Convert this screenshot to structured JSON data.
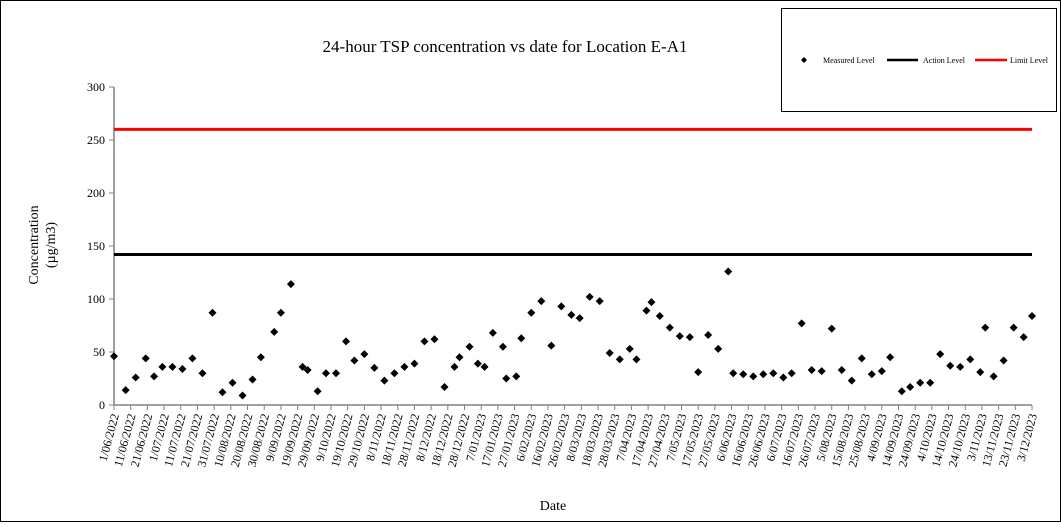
{
  "chart_data": {
    "type": "scatter",
    "title": "24-hour TSP concentration vs date for Location E-A1",
    "xlabel": "Date",
    "ylabel": [
      "Concentration",
      "(µg/m3)"
    ],
    "ylim": [
      0,
      300
    ],
    "yticks": [
      0,
      50,
      100,
      150,
      200,
      250,
      300
    ],
    "xlim": [
      "2022-06-01",
      "2023-12-03"
    ],
    "xticks": [
      "1/06/2022",
      "11/06/2022",
      "21/06/2022",
      "1/07/2022",
      "11/07/2022",
      "21/07/2022",
      "31/07/2022",
      "10/08/2022",
      "20/08/2022",
      "30/08/2022",
      "9/09/2022",
      "19/09/2022",
      "29/09/2022",
      "9/10/2022",
      "19/10/2022",
      "29/10/2022",
      "8/11/2022",
      "18/11/2022",
      "28/11/2022",
      "8/12/2022",
      "18/12/2022",
      "28/12/2022",
      "7/01/2023",
      "17/01/2023",
      "27/01/2023",
      "6/02/2023",
      "16/02/2023",
      "26/02/2023",
      "8/03/2023",
      "18/03/2023",
      "28/03/2023",
      "7/04/2023",
      "17/04/2023",
      "27/04/2023",
      "7/05/2023",
      "17/05/2023",
      "27/05/2023",
      "6/06/2023",
      "16/06/2023",
      "26/06/2023",
      "6/07/2023",
      "16/07/2023",
      "26/07/2023",
      "5/08/2023",
      "15/08/2023",
      "25/08/2023",
      "4/09/2023",
      "14/09/2023",
      "24/09/2023",
      "4/10/2023",
      "14/10/2023",
      "24/10/2023",
      "3/11/2023",
      "13/11/2023",
      "23/11/2023",
      "3/12/2023"
    ],
    "grid": false,
    "legend_placement": "top-right",
    "legend": [
      {
        "name": "Measured Level",
        "marker": "diamond",
        "color": "#000000"
      },
      {
        "name": "Action Level",
        "marker": "line",
        "color": "#000000"
      },
      {
        "name": "Limit Level",
        "marker": "line",
        "color": "#ff0000"
      }
    ],
    "action_level": 142,
    "limit_level": 260,
    "series": [
      {
        "name": "Measured Level",
        "color": "#000000",
        "points": [
          [
            "2022-06-01",
            46
          ],
          [
            "2022-06-08",
            14
          ],
          [
            "2022-06-14",
            26
          ],
          [
            "2022-06-20",
            44
          ],
          [
            "2022-06-25",
            27
          ],
          [
            "2022-06-30",
            36
          ],
          [
            "2022-07-06",
            36
          ],
          [
            "2022-07-12",
            34
          ],
          [
            "2022-07-18",
            44
          ],
          [
            "2022-07-24",
            30
          ],
          [
            "2022-07-30",
            87
          ],
          [
            "2022-08-05",
            12
          ],
          [
            "2022-08-11",
            21
          ],
          [
            "2022-08-17",
            9
          ],
          [
            "2022-08-23",
            24
          ],
          [
            "2022-08-28",
            45
          ],
          [
            "2022-09-05",
            69
          ],
          [
            "2022-09-09",
            87
          ],
          [
            "2022-09-15",
            114
          ],
          [
            "2022-09-22",
            36
          ],
          [
            "2022-09-25",
            33
          ],
          [
            "2022-10-01",
            13
          ],
          [
            "2022-10-06",
            30
          ],
          [
            "2022-10-12",
            30
          ],
          [
            "2022-10-18",
            60
          ],
          [
            "2022-10-23",
            42
          ],
          [
            "2022-10-29",
            48
          ],
          [
            "2022-11-04",
            35
          ],
          [
            "2022-11-10",
            23
          ],
          [
            "2022-11-16",
            30
          ],
          [
            "2022-11-22",
            36
          ],
          [
            "2022-11-28",
            39
          ],
          [
            "2022-12-04",
            60
          ],
          [
            "2022-12-10",
            62
          ],
          [
            "2022-12-16",
            17
          ],
          [
            "2022-12-22",
            36
          ],
          [
            "2022-12-25",
            45
          ],
          [
            "2022-12-31",
            55
          ],
          [
            "2023-01-05",
            39
          ],
          [
            "2023-01-09",
            36
          ],
          [
            "2023-01-14",
            68
          ],
          [
            "2023-01-20",
            55
          ],
          [
            "2023-01-22",
            25
          ],
          [
            "2023-01-28",
            27
          ],
          [
            "2023-01-31",
            63
          ],
          [
            "2023-02-06",
            87
          ],
          [
            "2023-02-12",
            98
          ],
          [
            "2023-02-18",
            56
          ],
          [
            "2023-02-24",
            93
          ],
          [
            "2023-03-02",
            85
          ],
          [
            "2023-03-07",
            82
          ],
          [
            "2023-03-13",
            102
          ],
          [
            "2023-03-19",
            98
          ],
          [
            "2023-03-25",
            49
          ],
          [
            "2023-03-31",
            43
          ],
          [
            "2023-04-06",
            53
          ],
          [
            "2023-04-10",
            43
          ],
          [
            "2023-04-16",
            89
          ],
          [
            "2023-04-19",
            97
          ],
          [
            "2023-04-24",
            84
          ],
          [
            "2023-04-30",
            73
          ],
          [
            "2023-05-06",
            65
          ],
          [
            "2023-05-12",
            64
          ],
          [
            "2023-05-17",
            31
          ],
          [
            "2023-05-23",
            66
          ],
          [
            "2023-05-29",
            53
          ],
          [
            "2023-06-04",
            126
          ],
          [
            "2023-06-07",
            30
          ],
          [
            "2023-06-13",
            29
          ],
          [
            "2023-06-19",
            27
          ],
          [
            "2023-06-25",
            29
          ],
          [
            "2023-07-01",
            30
          ],
          [
            "2023-07-07",
            26
          ],
          [
            "2023-07-12",
            30
          ],
          [
            "2023-07-18",
            77
          ],
          [
            "2023-07-24",
            33
          ],
          [
            "2023-07-30",
            32
          ],
          [
            "2023-08-05",
            72
          ],
          [
            "2023-08-11",
            33
          ],
          [
            "2023-08-17",
            23
          ],
          [
            "2023-08-23",
            44
          ],
          [
            "2023-08-29",
            29
          ],
          [
            "2023-09-04",
            32
          ],
          [
            "2023-09-09",
            45
          ],
          [
            "2023-09-16",
            13
          ],
          [
            "2023-09-21",
            17
          ],
          [
            "2023-09-27",
            21
          ],
          [
            "2023-10-03",
            21
          ],
          [
            "2023-10-09",
            48
          ],
          [
            "2023-10-15",
            37
          ],
          [
            "2023-10-21",
            36
          ],
          [
            "2023-10-27",
            43
          ],
          [
            "2023-11-02",
            31
          ],
          [
            "2023-11-05",
            73
          ],
          [
            "2023-11-10",
            27
          ],
          [
            "2023-11-16",
            42
          ],
          [
            "2023-11-22",
            73
          ],
          [
            "2023-11-28",
            64
          ],
          [
            "2023-12-03",
            84
          ]
        ]
      }
    ]
  }
}
